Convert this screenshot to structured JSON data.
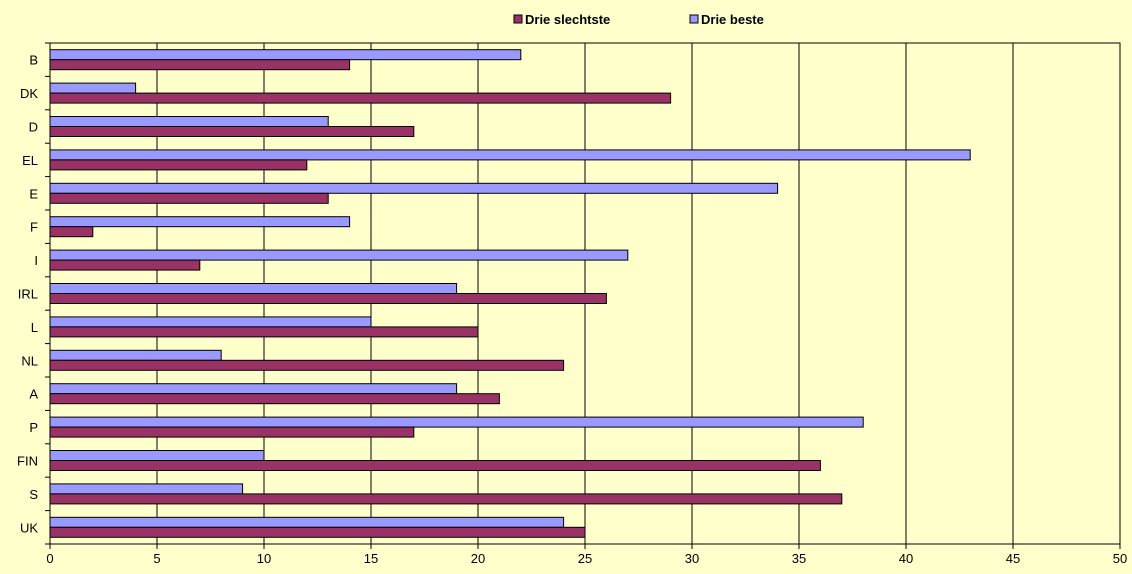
{
  "chart_data": {
    "type": "bar",
    "orientation": "horizontal",
    "categories": [
      "B",
      "DK",
      "D",
      "EL",
      "E",
      "F",
      "I",
      "IRL",
      "L",
      "NL",
      "A",
      "P",
      "FIN",
      "S",
      "UK"
    ],
    "series": [
      {
        "name": "Drie beste",
        "color": "#9999ff",
        "values": [
          22,
          4,
          13,
          43,
          34,
          14,
          27,
          19,
          15,
          8,
          19,
          38,
          10,
          9,
          24
        ]
      },
      {
        "name": "Drie slechtste",
        "color": "#993366",
        "values": [
          14,
          29,
          17,
          12,
          13,
          2,
          7,
          26,
          20,
          24,
          21,
          17,
          36,
          37,
          25
        ]
      }
    ],
    "xlim": [
      0,
      50
    ],
    "xticks": [
      "0",
      "5",
      "10",
      "15",
      "20",
      "25",
      "30",
      "35",
      "40",
      "45",
      "50"
    ],
    "grid": "vertical",
    "legend": {
      "placement": "top-center",
      "order": [
        "Drie slechtste",
        "Drie beste"
      ]
    },
    "title": "",
    "xlabel": "",
    "ylabel": "",
    "background": "#ffffcc"
  }
}
